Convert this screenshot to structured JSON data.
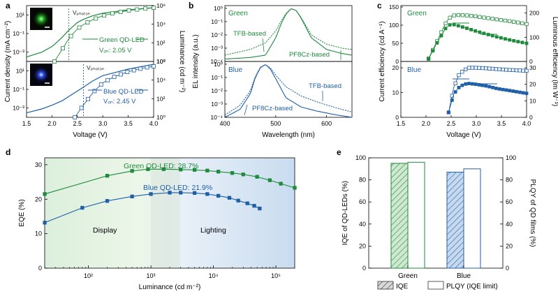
{
  "colors": {
    "green": "#1e8a3c",
    "blue": "#1f5fa8",
    "green_fill": "#cfe8cf",
    "blue_fill": "#c7d9ee"
  },
  "panels": {
    "a": "a",
    "b": "b",
    "c": "c",
    "d": "d",
    "e": "e"
  },
  "chart_data": [
    {
      "panel": "a",
      "type": "line",
      "xlabel": "Voltage (V)",
      "ylabel_left": "Current density (mA cm⁻²)",
      "ylabel_right": "Luminance (cd m⁻²)",
      "xlim": [
        1.5,
        4.0
      ],
      "xticks": [
        "1.5",
        "2.0",
        "2.5",
        "3.0",
        "3.5",
        "4.0"
      ],
      "subplots": [
        {
          "name": "green",
          "yticks_left": [
            "10⁻³",
            "10⁻¹",
            "10¹"
          ],
          "yticks_right": [
            "10⁰",
            "10²",
            "10⁴",
            "10⁶"
          ],
          "annotation_title": "Green QD-LED",
          "annotation_von": "Vₒₙ: 2.05 V",
          "vphoton_label": "Vₚₕₒₜₒₙ",
          "vphoton": 2.33,
          "current_density": {
            "x": [
              1.5,
              1.8,
              2.0,
              2.1,
              2.2,
              2.3,
              2.4,
              2.5,
              2.6,
              2.8,
              3.0,
              3.5,
              4.0
            ],
            "y": [
              0.0003,
              0.001,
              0.004,
              0.012,
              0.04,
              0.15,
              0.5,
              1.5,
              3,
              8,
              15,
              35,
              60
            ]
          },
          "luminance": {
            "x": [
              2.05,
              2.2,
              2.3,
              2.4,
              2.5,
              2.6,
              2.8,
              3.0,
              3.2,
              3.5,
              3.8,
              4.0
            ],
            "y": [
              1,
              20,
              150,
              800,
              3000,
              8000,
              30000,
              80000,
              150000,
              300000,
              450000,
              600000
            ]
          }
        },
        {
          "name": "blue",
          "yticks_left": [
            "10⁻³",
            "10⁻¹",
            "10¹"
          ],
          "yticks_right": [
            "10⁰",
            "10²",
            "10⁴",
            "10⁶"
          ],
          "annotation_title": "Blue QD-LED",
          "annotation_von": "Vₒₙ: 2.45 V",
          "vphoton_label": "Vₚₕₒₜₒₙ",
          "vphoton": 2.62,
          "current_density": {
            "x": [
              1.5,
              1.8,
              2.0,
              2.2,
              2.4,
              2.6,
              2.8,
              3.0,
              3.5,
              4.0
            ],
            "y": [
              0.0003,
              0.0008,
              0.002,
              0.006,
              0.03,
              0.15,
              0.8,
              3,
              15,
              50
            ]
          },
          "luminance": {
            "x": [
              2.45,
              2.6,
              2.7,
              2.8,
              2.9,
              3.0,
              3.2,
              3.5,
              3.8,
              4.0
            ],
            "y": [
              1,
              15,
              80,
              400,
              1500,
              5000,
              20000,
              80000,
              200000,
              300000
            ]
          }
        }
      ]
    },
    {
      "panel": "b",
      "type": "line",
      "xlabel": "Wavelength (nm)",
      "ylabel": "EL intensity (a.u.)",
      "xlim": [
        400,
        650
      ],
      "xticks": [
        "400",
        "500",
        "600"
      ],
      "yticks": [
        "10⁻⁴",
        "10⁻³",
        "10⁻²",
        "10⁻¹",
        "10⁰"
      ],
      "subplots": [
        {
          "name": "green",
          "label": "Green",
          "series": [
            {
              "name": "TFB-based",
              "style": "dotted",
              "x": [
                400,
                450,
                480,
                500,
                510,
                520,
                530,
                540,
                550,
                570,
                600,
                630,
                650
              ],
              "y": [
                0.0003,
                0.0008,
                0.0025,
                0.02,
                0.1,
                0.4,
                0.95,
                0.7,
                0.2,
                0.01,
                0.002,
                0.001,
                0.0008
              ]
            },
            {
              "name": "PF8Cz-based",
              "style": "solid",
              "x": [
                400,
                450,
                480,
                500,
                510,
                520,
                530,
                540,
                550,
                570,
                600,
                630,
                650
              ],
              "y": [
                0.00015,
                0.0002,
                0.0003,
                0.006,
                0.06,
                0.35,
                0.95,
                0.7,
                0.18,
                0.006,
                0.0008,
                0.0004,
                0.0003
              ]
            }
          ]
        },
        {
          "name": "blue",
          "label": "Blue",
          "series": [
            {
              "name": "TFB-based",
              "style": "dotted",
              "x": [
                400,
                430,
                450,
                460,
                470,
                480,
                490,
                500,
                520,
                550,
                580,
                620,
                650
              ],
              "y": [
                0.00015,
                0.0008,
                0.01,
                0.12,
                0.6,
                0.95,
                0.5,
                0.15,
                0.02,
                0.004,
                0.0015,
                0.0005,
                0.00025
              ]
            },
            {
              "name": "PF8Cz-based",
              "style": "solid",
              "x": [
                400,
                430,
                450,
                460,
                470,
                480,
                490,
                500,
                520,
                550,
                580,
                620,
                650
              ],
              "y": [
                0.0001,
                0.0004,
                0.006,
                0.1,
                0.55,
                0.95,
                0.4,
                0.08,
                0.003,
                0.0006,
                0.0003,
                0.00015,
                0.0001
              ]
            }
          ]
        }
      ]
    },
    {
      "panel": "c",
      "type": "line",
      "xlabel": "Voltage (V)",
      "ylabel_left": "Current efficiency (cd A⁻¹)",
      "ylabel_right": "Luminous efficiency (lm W⁻¹)",
      "xlim": [
        1.5,
        4.0
      ],
      "xticks": [
        "1.5",
        "2.0",
        "2.5",
        "3.0",
        "3.5",
        "4.0"
      ],
      "subplots": [
        {
          "name": "green",
          "label": "Green",
          "ylim_left": [
            0,
            150
          ],
          "yticks_left": [
            "0",
            "50",
            "100",
            "150"
          ],
          "ylim_right": [
            0,
            225
          ],
          "yticks_right": [
            "0",
            "100",
            "200"
          ],
          "current_efficiency": {
            "x": [
              2.05,
              2.2,
              2.4,
              2.5,
              2.6,
              2.8,
              3.0,
              3.2,
              3.4,
              3.6,
              3.8,
              4.0
            ],
            "y": [
              8,
              50,
              108,
              125,
              128,
              127,
              124,
              120,
              116,
              112,
              108,
              103
            ]
          },
          "luminous_efficiency": {
            "x": [
              2.05,
              2.2,
              2.4,
              2.5,
              2.6,
              2.8,
              3.0,
              3.2,
              3.4,
              3.6,
              3.8,
              4.0
            ],
            "y": [
              10,
              70,
              140,
              155,
              150,
              138,
              125,
              113,
              102,
              92,
              83,
              75
            ]
          }
        },
        {
          "name": "blue",
          "label": "Blue",
          "ylim_left": [
            0,
            22
          ],
          "yticks_left": [
            "0",
            "10",
            "20"
          ],
          "ylim_right": [
            0,
            33
          ],
          "yticks_right": [
            "0",
            "10",
            "20",
            "30"
          ],
          "current_efficiency": {
            "x": [
              2.45,
              2.55,
              2.65,
              2.75,
              2.85,
              3.0,
              3.2,
              3.4,
              3.6,
              3.8,
              4.0
            ],
            "y": [
              2,
              12,
              17,
              19,
              20,
              20,
              19.8,
              19.5,
              19.2,
              19,
              18.8
            ]
          },
          "luminous_efficiency": {
            "x": [
              2.45,
              2.55,
              2.65,
              2.75,
              2.85,
              3.0,
              3.2,
              3.4,
              3.6,
              3.8,
              4.0
            ],
            "y": [
              3,
              14,
              18,
              20,
              20.5,
              20,
              19,
              17.5,
              16.5,
              15.5,
              14.5
            ]
          }
        }
      ]
    },
    {
      "panel": "d",
      "type": "line",
      "xlabel": "Luminance (cd m⁻²)",
      "ylabel": "EQE (%)",
      "xscale": "log",
      "xlim": [
        20,
        200000
      ],
      "ylim": [
        0,
        32
      ],
      "xticks": [
        "10²",
        "10³",
        "10⁴",
        "10⁵"
      ],
      "yticks": [
        "0",
        "10",
        "20",
        "30"
      ],
      "regions": [
        {
          "label": "Display"
        },
        {
          "label": "Lighting"
        }
      ],
      "series": [
        {
          "name": "Green QD-LED: 28.7%",
          "color": "green",
          "x": [
            20,
            200,
            500,
            900,
            1600,
            3000,
            5000,
            8000,
            12000,
            20000,
            30000,
            50000,
            80000,
            120000,
            200000
          ],
          "y": [
            21.5,
            26.8,
            28.2,
            28.7,
            28.7,
            28.6,
            28.5,
            28.3,
            28.0,
            27.6,
            27.2,
            26.5,
            25.5,
            24.5,
            23.3
          ]
        },
        {
          "name": "Blue QD-LED: 21.9%",
          "color": "blue",
          "x": [
            20,
            80,
            200,
            500,
            1000,
            2000,
            3000,
            5000,
            8000,
            12000,
            18000,
            25000,
            35000,
            45000,
            55000
          ],
          "y": [
            13.2,
            17.5,
            19.5,
            20.8,
            21.5,
            21.9,
            21.9,
            21.8,
            21.5,
            21.0,
            20.4,
            19.6,
            18.8,
            18.1,
            17.3
          ]
        }
      ]
    },
    {
      "panel": "e",
      "type": "bar",
      "categories": [
        "Green",
        "Blue"
      ],
      "ylabel_left": "IQE of QD-LEDs (%)",
      "ylabel_right": "PLQY of QD films (%)",
      "ylim": [
        0,
        100
      ],
      "yticks": [
        "0",
        "20",
        "40",
        "60",
        "80",
        "100"
      ],
      "series": [
        {
          "name": "IQE",
          "values": [
            95,
            87
          ]
        },
        {
          "name": "PLQY (IQE limit)",
          "values": [
            96,
            90
          ]
        }
      ]
    }
  ]
}
